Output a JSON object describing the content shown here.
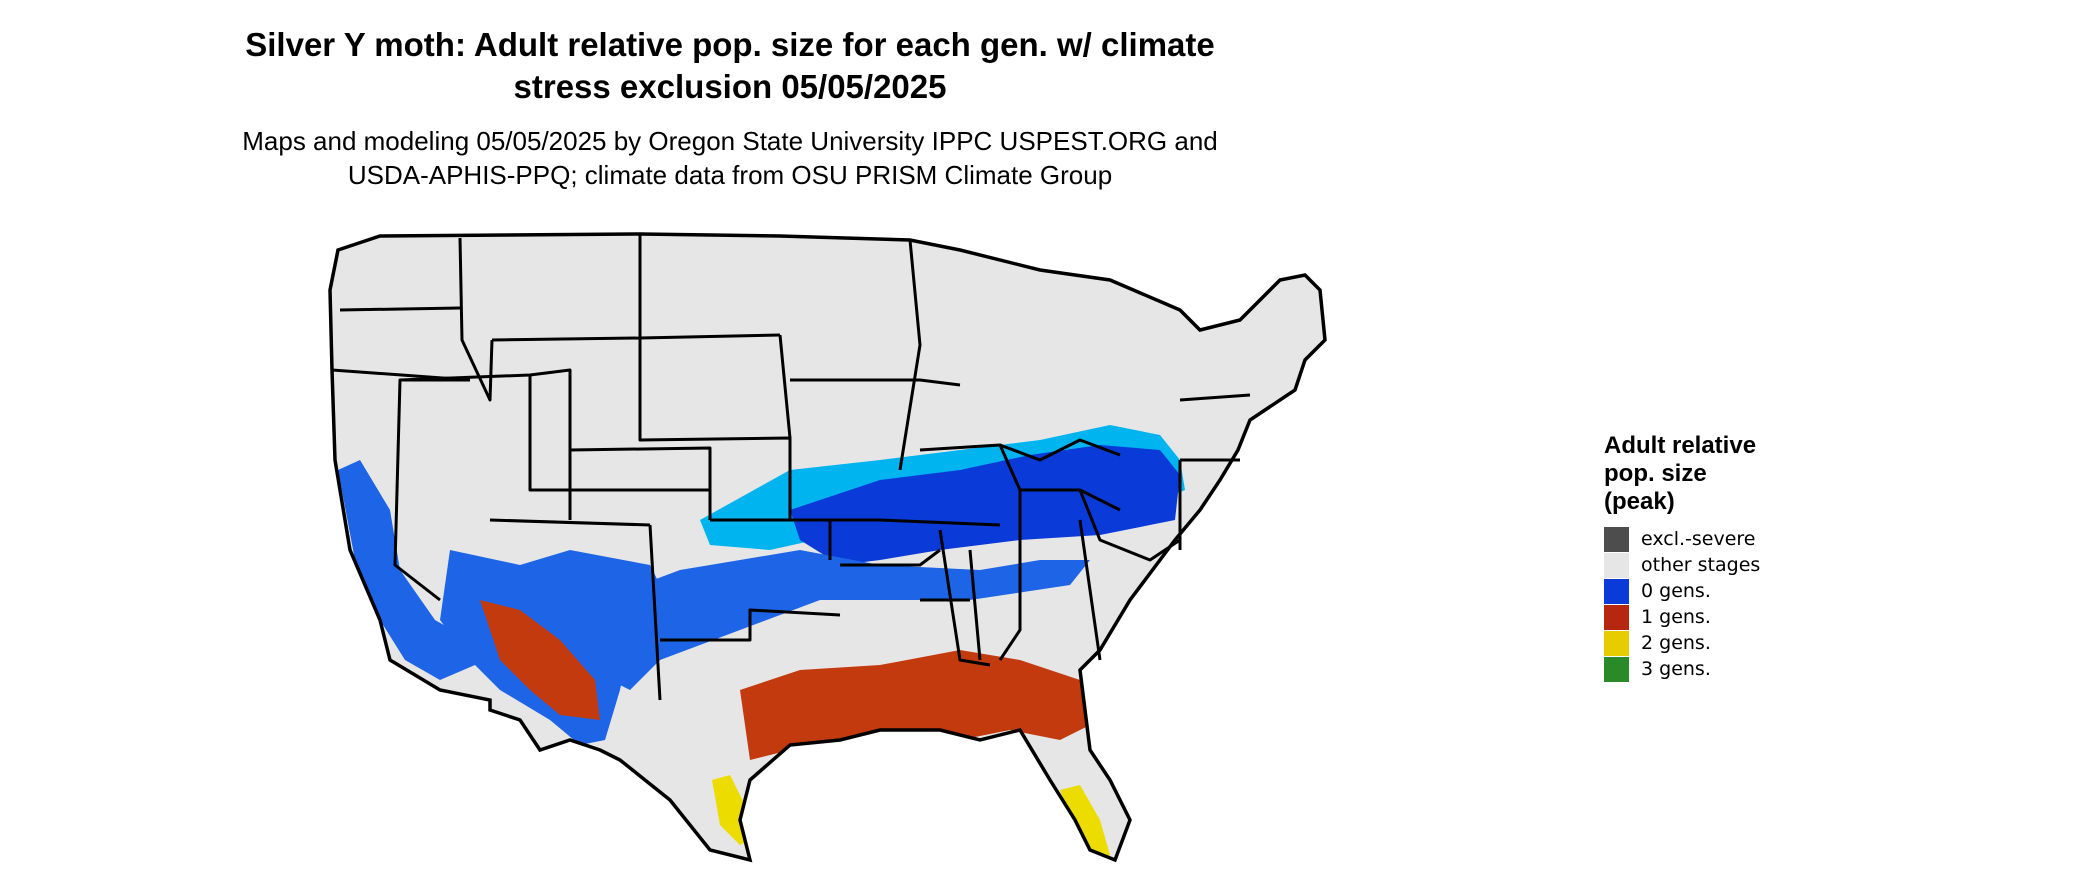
{
  "title_line1": "Silver Y moth: Adult relative pop. size for each gen. w/ climate",
  "title_line2": "stress exclusion 05/05/2025",
  "subtitle_line1": "Maps and modeling 05/05/2025 by Oregon State University IPPC USPEST.ORG and",
  "subtitle_line2": "USDA-APHIS-PPQ; climate data from OSU PRISM Climate Group",
  "legend": {
    "title_lines": [
      "Adult relative",
      "pop. size",
      "(peak)"
    ],
    "items": [
      {
        "label": "excl.-severe",
        "color": "#4d4d4d"
      },
      {
        "label": "other stages",
        "color": "#e6e6e6"
      },
      {
        "label": "0 gens.",
        "color": "#0a3ad8"
      },
      {
        "label": "1 gens.",
        "color": "#b5280f"
      },
      {
        "label": "2 gens.",
        "color": "#e6cc00"
      },
      {
        "label": "3 gens.",
        "color": "#2a8a2a"
      }
    ]
  },
  "map_colors": {
    "land": "#e6e6e6",
    "border": "#000000",
    "light_blue": "#00b4f0",
    "mid_blue": "#1e64e6",
    "dark_blue": "#0a3ad8",
    "red": "#c23a0e",
    "yellow": "#ecdc00"
  }
}
